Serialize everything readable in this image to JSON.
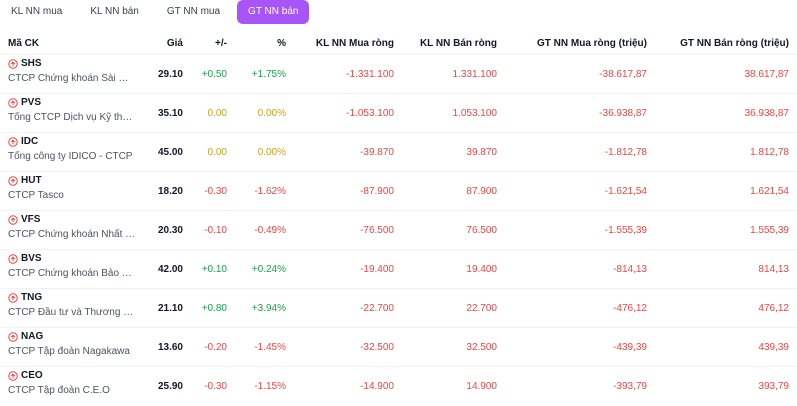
{
  "tabs": [
    {
      "label": "KL NN mua",
      "active": false
    },
    {
      "label": "KL NN bán",
      "active": false
    },
    {
      "label": "GT NN mua",
      "active": false
    },
    {
      "label": "GT NN bán",
      "active": true
    }
  ],
  "columns": {
    "ticker": "Mã CK",
    "price": "Giá",
    "change": "+/-",
    "percent": "%",
    "kl_mua": "KL NN Mua ròng",
    "kl_ban": "KL NN Bán ròng",
    "gt_mua": "GT NN Mua ròng (triệu)",
    "gt_ban": "GT NN Bán ròng (triệu)"
  },
  "rows": [
    {
      "ticker": "SHS",
      "company": "CTCP Chứng khoán Sài Gò...",
      "price": "29.10",
      "change": "+0.50",
      "percent": "+1.75%",
      "dir": "pos",
      "kl_mua": "-1.331.100",
      "kl_ban": "1.331.100",
      "gt_mua": "-38.617,87",
      "gt_ban": "38.617,87"
    },
    {
      "ticker": "PVS",
      "company": "Tổng CTCP Dịch vụ Kỹ thuậ...",
      "price": "35.10",
      "change": "0.00",
      "percent": "0.00%",
      "dir": "zero",
      "kl_mua": "-1.053.100",
      "kl_ban": "1.053.100",
      "gt_mua": "-36.938,87",
      "gt_ban": "36.938,87"
    },
    {
      "ticker": "IDC",
      "company": "Tổng công ty IDICO - CTCP",
      "price": "45.00",
      "change": "0.00",
      "percent": "0.00%",
      "dir": "zero",
      "kl_mua": "-39.870",
      "kl_ban": "39.870",
      "gt_mua": "-1.812,78",
      "gt_ban": "1.812,78"
    },
    {
      "ticker": "HUT",
      "company": "CTCP Tasco",
      "price": "18.20",
      "change": "-0.30",
      "percent": "-1.62%",
      "dir": "neg",
      "kl_mua": "-87.900",
      "kl_ban": "87.900",
      "gt_mua": "-1.621,54",
      "gt_ban": "1.621,54"
    },
    {
      "ticker": "VFS",
      "company": "CTCP Chứng khoán Nhất Việt",
      "price": "20.30",
      "change": "-0.10",
      "percent": "-0.49%",
      "dir": "neg",
      "kl_mua": "-76.500",
      "kl_ban": "76.500",
      "gt_mua": "-1.555,39",
      "gt_ban": "1.555,39"
    },
    {
      "ticker": "BVS",
      "company": "CTCP Chứng khoán Bảo Việt",
      "price": "42.00",
      "change": "+0.10",
      "percent": "+0.24%",
      "dir": "pos",
      "kl_mua": "-19.400",
      "kl_ban": "19.400",
      "gt_mua": "-814,13",
      "gt_ban": "814,13"
    },
    {
      "ticker": "TNG",
      "company": "CTCP Đầu tư và Thương m...",
      "price": "21.10",
      "change": "+0.80",
      "percent": "+3.94%",
      "dir": "pos",
      "kl_mua": "-22.700",
      "kl_ban": "22.700",
      "gt_mua": "-476,12",
      "gt_ban": "476,12"
    },
    {
      "ticker": "NAG",
      "company": "CTCP Tập đoàn Nagakawa",
      "price": "13.60",
      "change": "-0.20",
      "percent": "-1.45%",
      "dir": "neg",
      "kl_mua": "-32.500",
      "kl_ban": "32.500",
      "gt_mua": "-439,39",
      "gt_ban": "439,39"
    },
    {
      "ticker": "CEO",
      "company": "CTCP Tập đoàn C.E.O",
      "price": "25.90",
      "change": "-0.30",
      "percent": "-1.15%",
      "dir": "neg",
      "kl_mua": "-14.900",
      "kl_ban": "14.900",
      "gt_mua": "-393,79",
      "gt_ban": "393,79"
    }
  ],
  "colors": {
    "accent": "#a855f7",
    "up": "#16a34a",
    "flat": "#d4a017",
    "down": "#ef4444"
  },
  "icons": {
    "ticker_marker": "warning-circle-icon"
  }
}
